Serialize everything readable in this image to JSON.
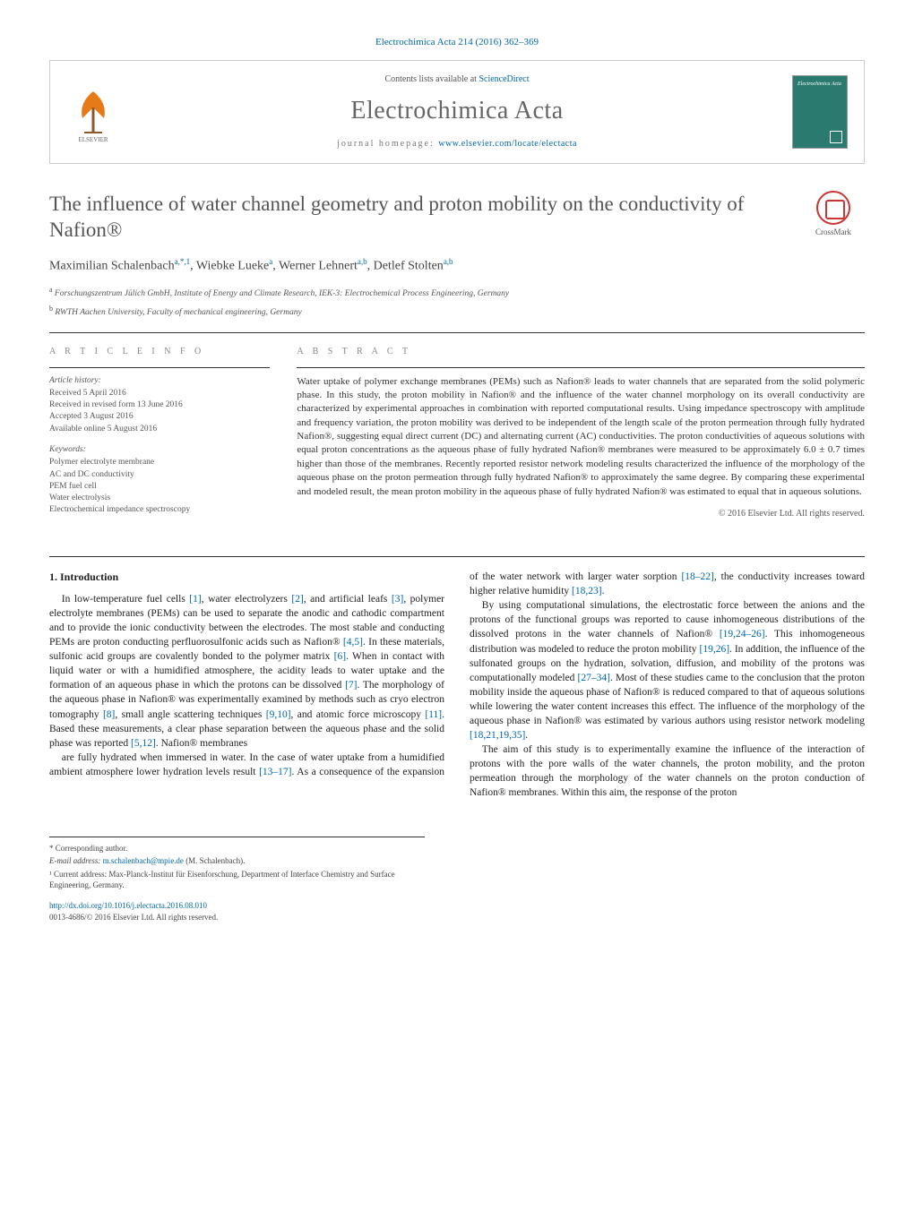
{
  "journal_ref": "Electrochimica Acta 214 (2016) 362–369",
  "banner": {
    "contents_prefix": "Contents lists available at ",
    "contents_link": "ScienceDirect",
    "journal_title": "Electrochimica Acta",
    "homepage_prefix": "journal homepage: ",
    "homepage_url": "www.elsevier.com/locate/electacta",
    "cover_text": "Electrochimica Acta"
  },
  "crossmark_label": "CrossMark",
  "title": "The influence of water channel geometry and proton mobility on the conductivity of Nafion®",
  "authors_html": "Maximilian Schalenbach<sup>a,*,1</sup>, Wiebke Lueke<sup>a</sup>, Werner Lehnert<sup>a,b</sup>, Detlef Stolten<sup>a,b</sup>",
  "affiliations": [
    {
      "marker": "a",
      "text": "Forschungszentrum Jülich GmbH, Institute of Energy and Climate Research, IEK-3: Electrochemical Process Engineering, Germany"
    },
    {
      "marker": "b",
      "text": "RWTH Aachen University, Faculty of mechanical engineering, Germany"
    }
  ],
  "article_info_label": "A R T I C L E   I N F O",
  "abstract_label": "A B S T R A C T",
  "history": {
    "heading": "Article history:",
    "lines": [
      "Received 5 April 2016",
      "Received in revised form 13 June 2016",
      "Accepted 3 August 2016",
      "Available online 5 August 2016"
    ]
  },
  "keywords": {
    "heading": "Keywords:",
    "items": [
      "Polymer electrolyte membrane",
      "AC and DC conductivity",
      "PEM fuel cell",
      "Water electrolysis",
      "Electrochemical impedance spectroscopy"
    ]
  },
  "abstract": "Water uptake of polymer exchange membranes (PEMs) such as Nafion® leads to water channels that are separated from the solid polymeric phase. In this study, the proton mobility in Nafion® and the influence of the water channel morphology on its overall conductivity are characterized by experimental approaches in combination with reported computational results. Using impedance spectroscopy with amplitude and frequency variation, the proton mobility was derived to be independent of the length scale of the proton permeation through fully hydrated Nafion®, suggesting equal direct current (DC) and alternating current (AC) conductivities. The proton conductivities of aqueous solutions with equal proton concentrations as the aqueous phase of fully hydrated Nafion® membranes were measured to be approximately 6.0 ± 0.7 times higher than those of the membranes. Recently reported resistor network modeling results characterized the influence of the morphology of the aqueous phase on the proton permeation through fully hydrated Nafion® to approximately the same degree. By comparing these experimental and modeled result, the mean proton mobility in the aqueous phase of fully hydrated Nafion® was estimated to equal that in aqueous solutions.",
  "copyright": "© 2016 Elsevier Ltd. All rights reserved.",
  "section_heading": "1. Introduction",
  "paragraphs": [
    "In low-temperature fuel cells <span class='ref'>[1]</span>, water electrolyzers <span class='ref'>[2]</span>, and artificial leafs <span class='ref'>[3]</span>, polymer electrolyte membranes (PEMs) can be used to separate the anodic and cathodic compartment and to provide the ionic conductivity between the electrodes. The most stable and conducting PEMs are proton conducting perfluorosulfonic acids such as Nafion® <span class='ref'>[4,5]</span>. In these materials, sulfonic acid groups are covalently bonded to the polymer matrix <span class='ref'>[6]</span>. When in contact with liquid water or with a humidified atmosphere, the acidity leads to water uptake and the formation of an aqueous phase in which the protons can be dissolved <span class='ref'>[7]</span>. The morphology of the aqueous phase in Nafion® was experimentally examined by methods such as cryo electron tomography <span class='ref'>[8]</span>, small angle scattering techniques <span class='ref'>[9,10]</span>, and atomic force microscopy <span class='ref'>[11]</span>. Based these measurements, a clear phase separation between the aqueous phase and the solid phase was reported <span class='ref'>[5,12]</span>. Nafion® membranes",
    "are fully hydrated when immersed in water. In the case of water uptake from a humidified ambient atmosphere lower hydration levels result <span class='ref'>[13–17]</span>. As a consequence of the expansion of the water network with larger water sorption <span class='ref'>[18–22]</span>, the conductivity increases toward higher relative humidity <span class='ref'>[18,23]</span>.",
    "By using computational simulations, the electrostatic force between the anions and the protons of the functional groups was reported to cause inhomogeneous distributions of the dissolved protons in the water channels of Nafion® <span class='ref'>[19,24–26]</span>. This inhomogeneous distribution was modeled to reduce the proton mobility <span class='ref'>[19,26]</span>. In addition, the influence of the sulfonated groups on the hydration, solvation, diffusion, and mobility of the protons was computationally modeled <span class='ref'>[27–34]</span>. Most of these studies came to the conclusion that the proton mobility inside the aqueous phase of Nafion® is reduced compared to that of aqueous solutions while lowering the water content increases this effect. The influence of the morphology of the aqueous phase in Nafion® was estimated by various authors using resistor network modeling <span class='ref'>[18,21,19,35]</span>.",
    "The aim of this study is to experimentally examine the influence of the interaction of protons with the pore walls of the water channels, the proton mobility, and the proton permeation through the morphology of the water channels on the proton conduction of Nafion® membranes. Within this aim, the response of the proton"
  ],
  "footnotes": {
    "corresponding": "* Corresponding author.",
    "email_label": "E-mail address: ",
    "email": "m.schalenbach@mpie.de",
    "email_owner": " (M. Schalenbach).",
    "current_address": "¹ Current address: Max-Planck-Institut für Eisenforschung, Department of Interface Chemistry and Surface Engineering, Germany."
  },
  "doi": {
    "url": "http://dx.doi.org/10.1016/j.electacta.2016.08.010",
    "issn_line": "0013-4686/© 2016 Elsevier Ltd. All rights reserved."
  },
  "colors": {
    "link": "#0066aa",
    "text": "#333333",
    "muted": "#666666",
    "rule": "#333333",
    "cover_bg": "#2a7a6f",
    "crossmark": "#cc3333"
  }
}
